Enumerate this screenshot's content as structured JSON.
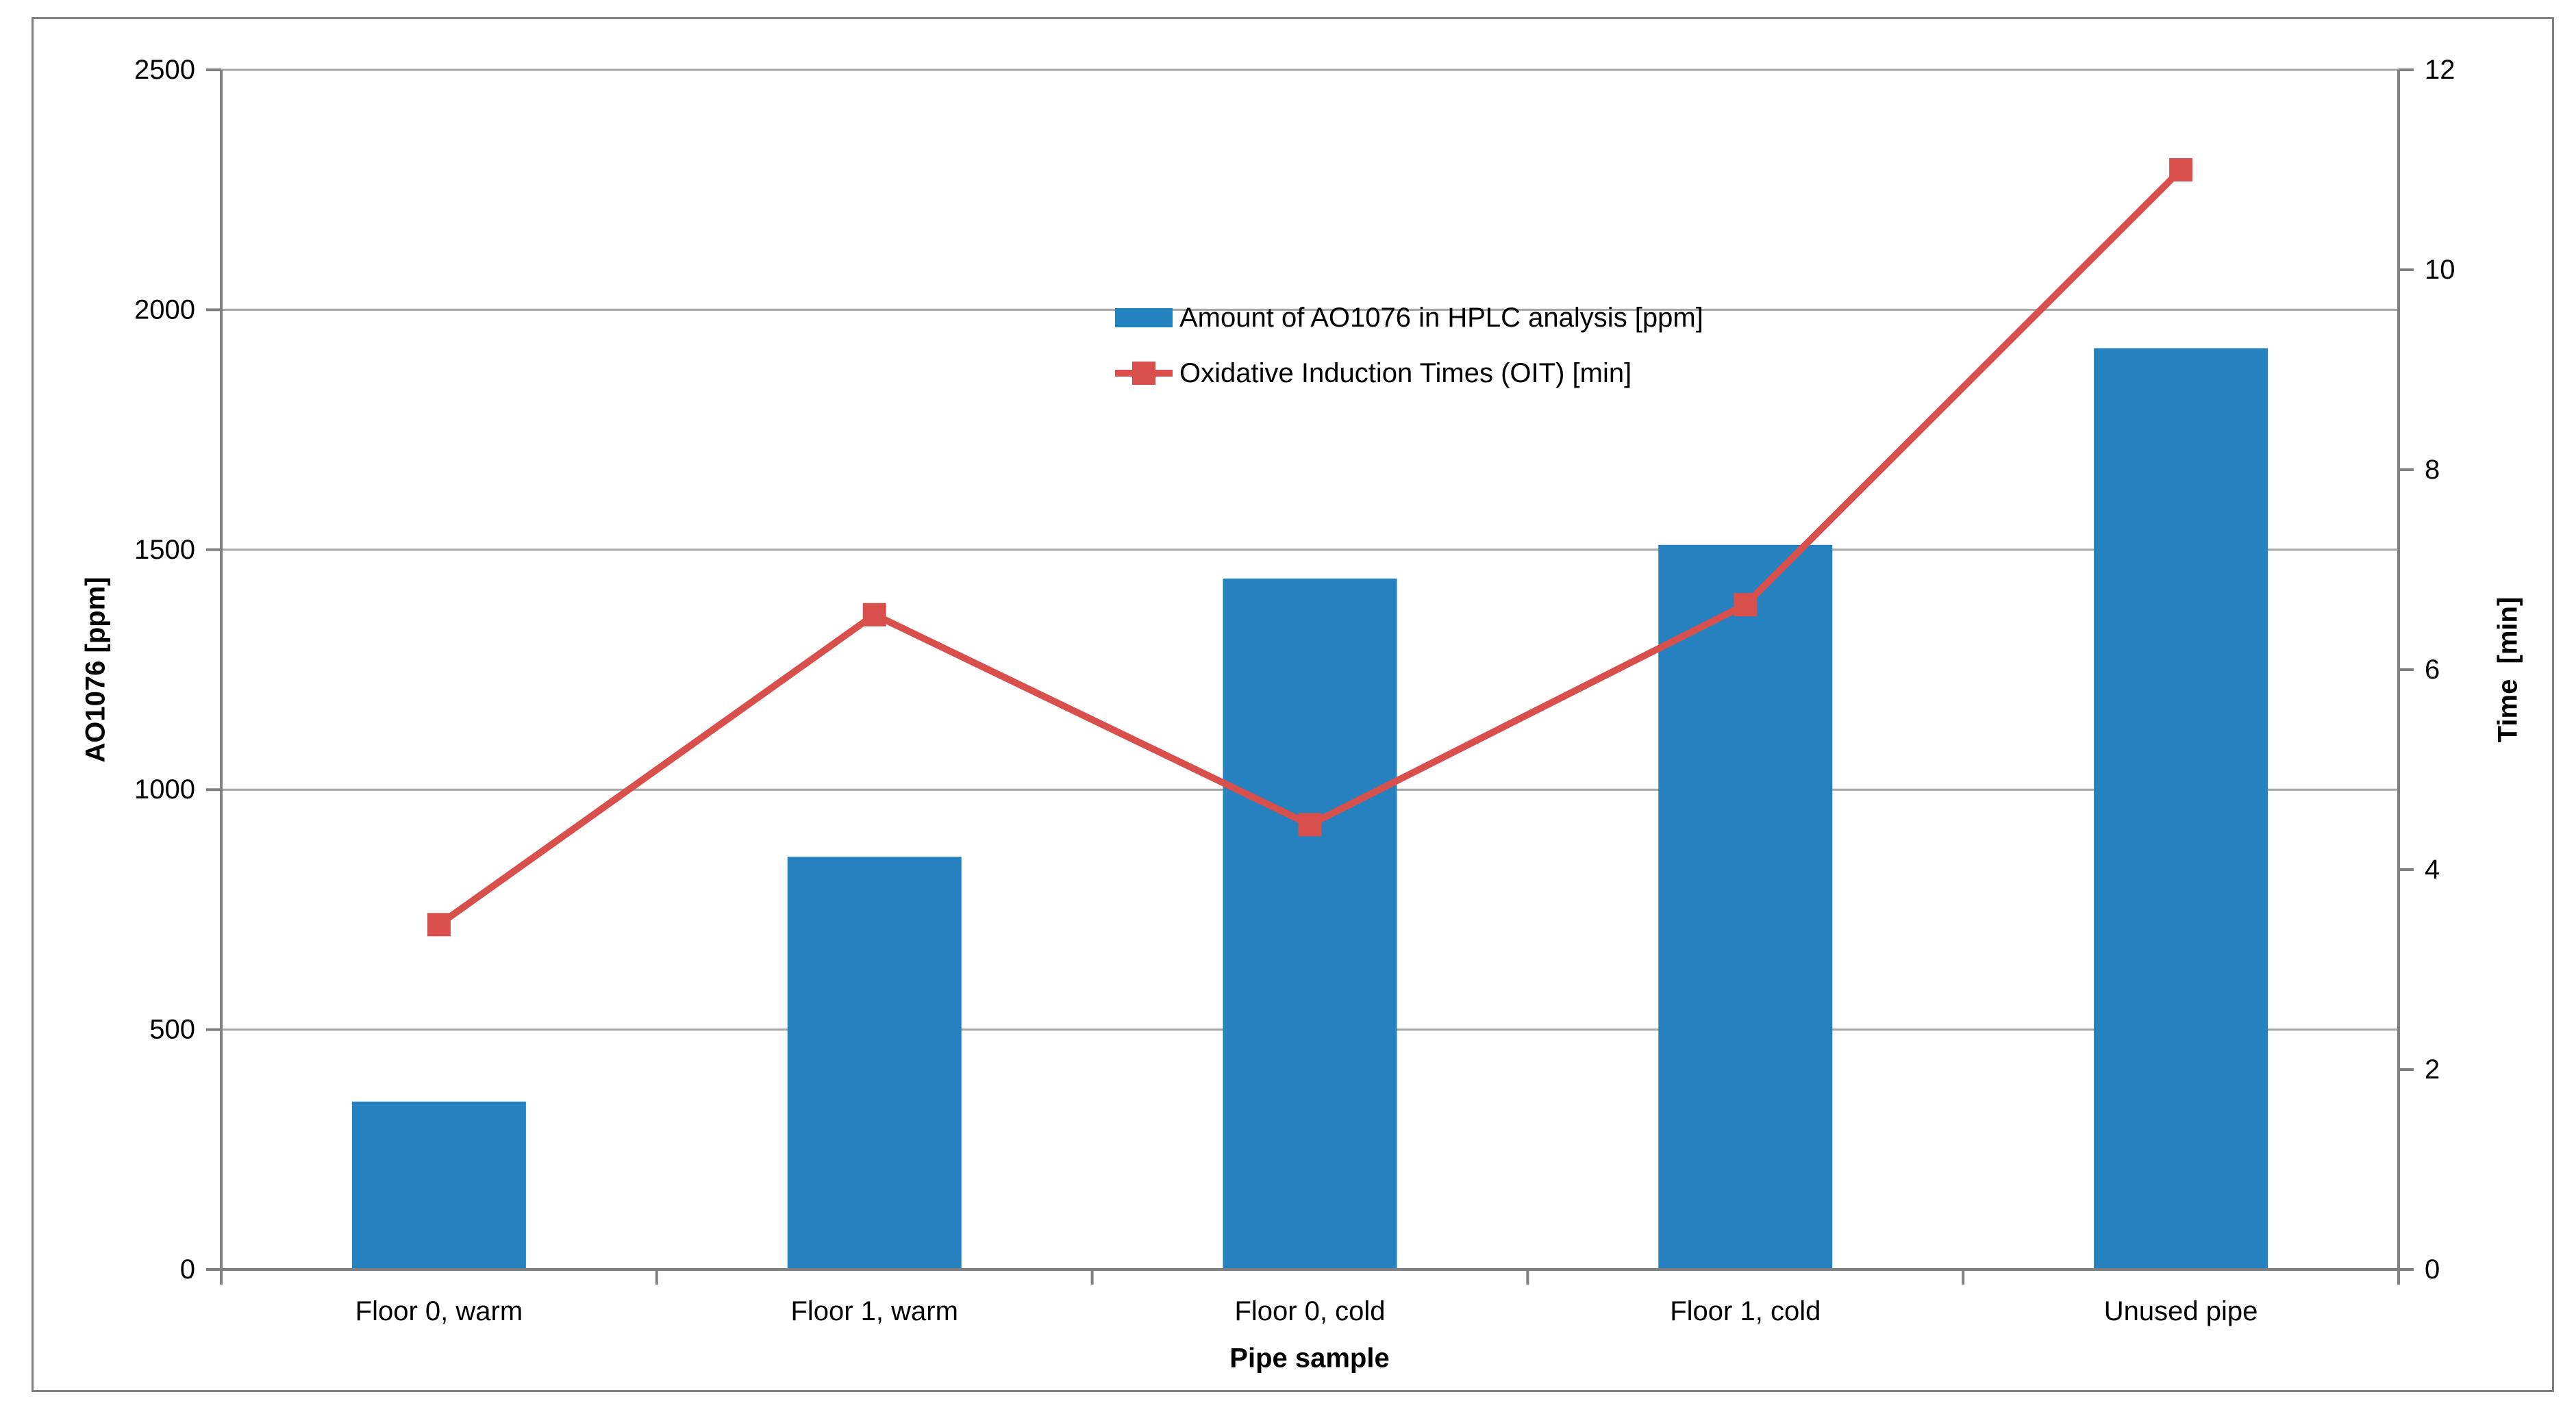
{
  "figure": {
    "background": "#FFFFFF",
    "border_color": "#808080"
  },
  "colors": {
    "bar": "#2681BF",
    "line": "#D94F4B",
    "gridline": "#A6A6A6",
    "axis": "#808080",
    "text": "#000000"
  },
  "chart_data": {
    "type": "bar+line",
    "categories": [
      "Floor 0, warm",
      "Floor 1, warm",
      "Floor 0, cold",
      "Floor 1, cold",
      "Unused pipe"
    ],
    "series": [
      {
        "name": "Amount of AO1076 in HPLC analysis [ppm]",
        "type": "bar",
        "axis": "left",
        "color": "#2681BF",
        "values": [
          350,
          860,
          1440,
          1510,
          1920
        ]
      },
      {
        "name": "Oxidative Induction Times (OIT) [min]",
        "type": "line",
        "axis": "right",
        "color": "#D94F4B",
        "marker": "square",
        "values": [
          3.45,
          6.55,
          4.45,
          6.65,
          11.0
        ]
      }
    ],
    "x_axis": {
      "title": "Pipe sample"
    },
    "left_axis": {
      "title": "AO1076 [ppm]",
      "min": 0,
      "max": 2500,
      "ticks": [
        0,
        500,
        1000,
        1500,
        2000,
        2500
      ]
    },
    "right_axis": {
      "title": "Time  [min]",
      "min": 0,
      "max": 12,
      "ticks": [
        0,
        2,
        4,
        6,
        8,
        10,
        12
      ]
    },
    "grid": true,
    "legend_position": "top-center"
  }
}
